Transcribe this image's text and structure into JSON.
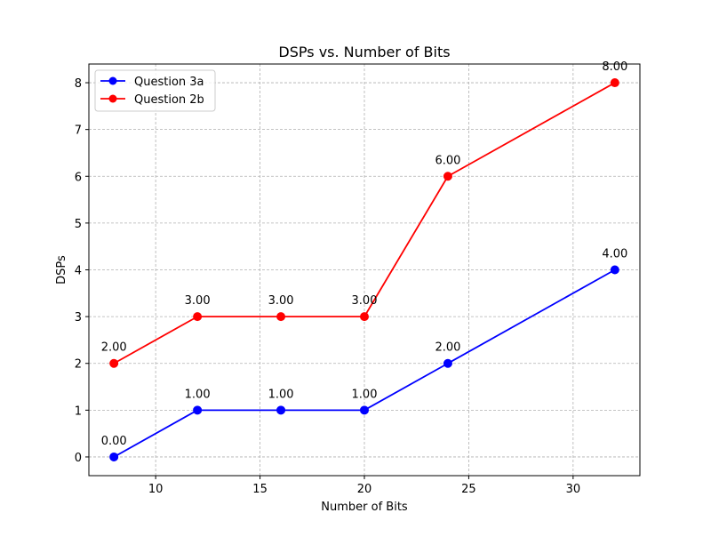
{
  "chart_data": {
    "type": "line",
    "title": "DSPs vs. Number of Bits",
    "xlabel": "Number of Bits",
    "ylabel": "DSPs",
    "xlim": [
      6.8,
      33.2
    ],
    "ylim": [
      -0.4,
      8.4
    ],
    "xticks": [
      10,
      15,
      20,
      25,
      30
    ],
    "yticks": [
      0,
      1,
      2,
      3,
      4,
      5,
      6,
      7,
      8
    ],
    "grid": true,
    "legend_position": "upper-left",
    "series": [
      {
        "name": "Question 3a",
        "color": "#0000ff",
        "marker": "circle",
        "x": [
          8,
          12,
          16,
          20,
          24,
          32
        ],
        "y": [
          0,
          1,
          1,
          1,
          2,
          4
        ],
        "labels": [
          "0.00",
          "1.00",
          "1.00",
          "1.00",
          "2.00",
          "4.00"
        ]
      },
      {
        "name": "Question 2b",
        "color": "#ff0000",
        "marker": "circle",
        "x": [
          8,
          12,
          16,
          20,
          24,
          32
        ],
        "y": [
          2,
          3,
          3,
          3,
          6,
          8
        ],
        "labels": [
          "2.00",
          "3.00",
          "3.00",
          "3.00",
          "6.00",
          "8.00"
        ]
      }
    ]
  }
}
